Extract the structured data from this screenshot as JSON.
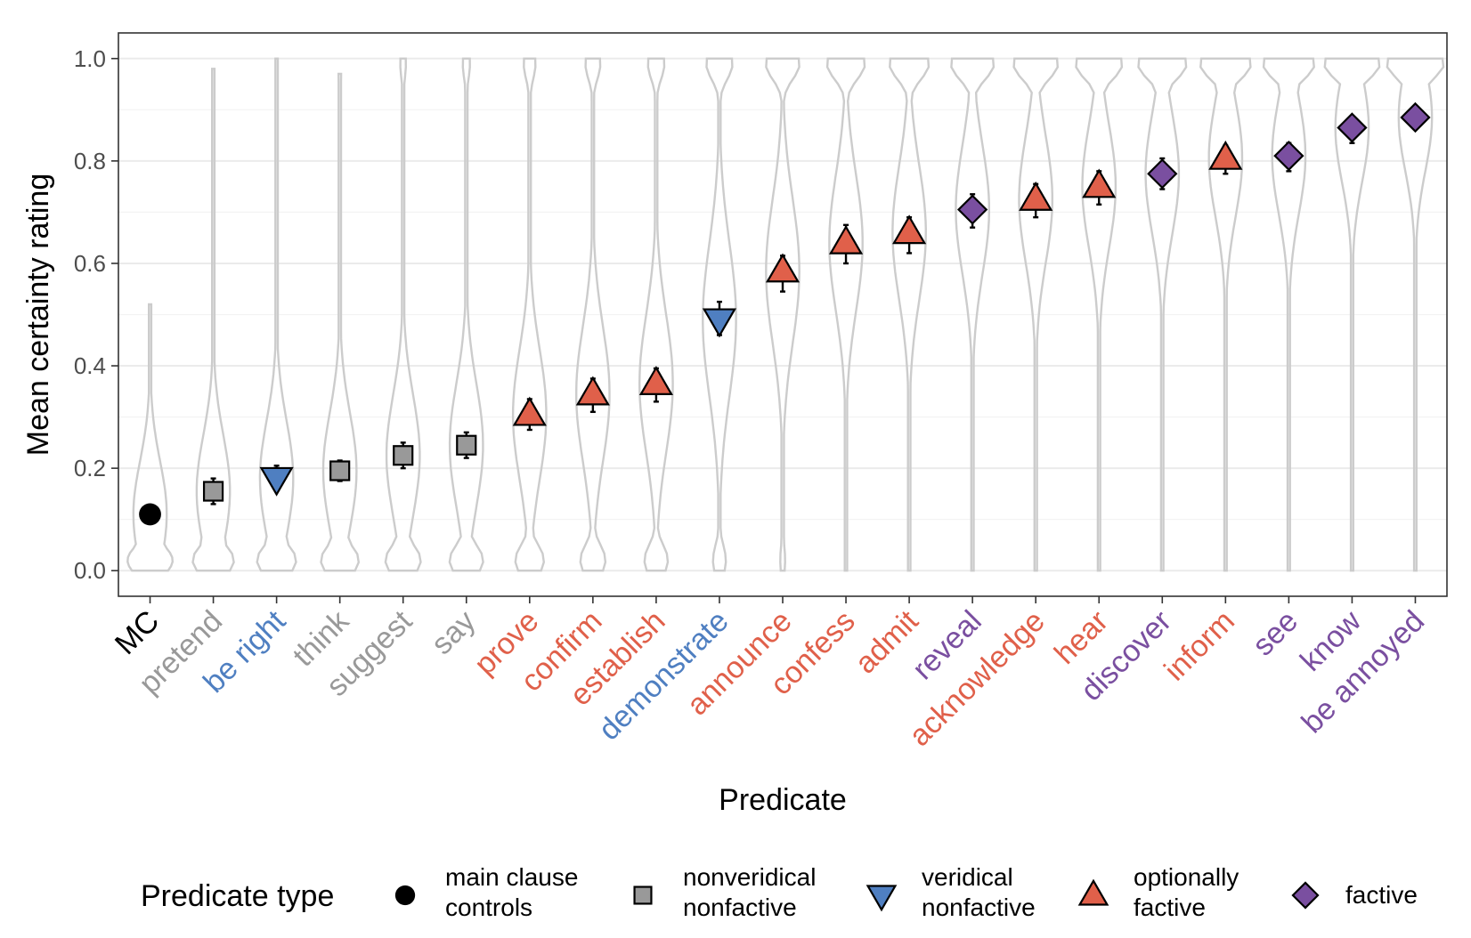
{
  "chart_data": {
    "type": "scatter",
    "xlabel": "Predicate",
    "ylabel": "Mean certainty rating",
    "ylim": [
      -0.05,
      1.05
    ],
    "yticks": [
      0.0,
      0.2,
      0.4,
      0.6,
      0.8,
      1.0
    ],
    "ytick_labels": [
      "0.0",
      "0.2",
      "0.4",
      "0.6",
      "0.8",
      "1.0"
    ],
    "grid": true,
    "legend_position": "bottom",
    "legend_title": "Predicate type",
    "types": [
      {
        "key": "mc",
        "label": [
          "main clause",
          "controls"
        ],
        "color": "#000000",
        "label_color": "#000000",
        "marker": "circle"
      },
      {
        "key": "nvnf",
        "label": [
          "nonveridical",
          "nonfactive"
        ],
        "color": "#999999",
        "label_color": "#999999",
        "marker": "square"
      },
      {
        "key": "vnf",
        "label": [
          "veridical",
          "nonfactive"
        ],
        "color": "#4F7FC1",
        "label_color": "#4F7FC1",
        "marker": "triangle-down"
      },
      {
        "key": "of",
        "label": [
          "optionally",
          "factive"
        ],
        "color": "#E0604A",
        "label_color": "#E0604A",
        "marker": "triangle-up"
      },
      {
        "key": "f",
        "label": [
          "factive"
        ],
        "color": "#7A4FA0",
        "label_color": "#7A4FA0",
        "marker": "diamond"
      }
    ],
    "points": [
      {
        "predicate": "MC",
        "type": "mc",
        "mean": 0.11,
        "ci_low": 0.11,
        "ci_high": 0.11,
        "violin_max": 0.52
      },
      {
        "predicate": "pretend",
        "type": "nvnf",
        "mean": 0.155,
        "ci_low": 0.13,
        "ci_high": 0.18,
        "violin_max": 0.98
      },
      {
        "predicate": "be right",
        "type": "vnf",
        "mean": 0.18,
        "ci_low": 0.16,
        "ci_high": 0.205,
        "violin_max": 1.0
      },
      {
        "predicate": "think",
        "type": "nvnf",
        "mean": 0.195,
        "ci_low": 0.175,
        "ci_high": 0.215,
        "violin_max": 0.97
      },
      {
        "predicate": "suggest",
        "type": "nvnf",
        "mean": 0.225,
        "ci_low": 0.2,
        "ci_high": 0.25,
        "violin_max": 1.0
      },
      {
        "predicate": "say",
        "type": "nvnf",
        "mean": 0.245,
        "ci_low": 0.22,
        "ci_high": 0.27,
        "violin_max": 1.0
      },
      {
        "predicate": "prove",
        "type": "of",
        "mean": 0.305,
        "ci_low": 0.275,
        "ci_high": 0.335,
        "violin_max": 1.0
      },
      {
        "predicate": "confirm",
        "type": "of",
        "mean": 0.345,
        "ci_low": 0.31,
        "ci_high": 0.375,
        "violin_max": 1.0
      },
      {
        "predicate": "establish",
        "type": "of",
        "mean": 0.365,
        "ci_low": 0.33,
        "ci_high": 0.395,
        "violin_max": 1.0
      },
      {
        "predicate": "demonstrate",
        "type": "vnf",
        "mean": 0.49,
        "ci_low": 0.46,
        "ci_high": 0.525,
        "violin_max": 1.0
      },
      {
        "predicate": "announce",
        "type": "of",
        "mean": 0.585,
        "ci_low": 0.545,
        "ci_high": 0.615,
        "violin_max": 1.0
      },
      {
        "predicate": "confess",
        "type": "of",
        "mean": 0.64,
        "ci_low": 0.6,
        "ci_high": 0.675,
        "violin_max": 1.0
      },
      {
        "predicate": "admit",
        "type": "of",
        "mean": 0.66,
        "ci_low": 0.62,
        "ci_high": 0.69,
        "violin_max": 1.0
      },
      {
        "predicate": "reveal",
        "type": "f",
        "mean": 0.705,
        "ci_low": 0.67,
        "ci_high": 0.735,
        "violin_max": 1.0
      },
      {
        "predicate": "acknowledge",
        "type": "of",
        "mean": 0.725,
        "ci_low": 0.69,
        "ci_high": 0.755,
        "violin_max": 1.0
      },
      {
        "predicate": "hear",
        "type": "of",
        "mean": 0.75,
        "ci_low": 0.715,
        "ci_high": 0.78,
        "violin_max": 1.0
      },
      {
        "predicate": "discover",
        "type": "f",
        "mean": 0.775,
        "ci_low": 0.745,
        "ci_high": 0.805,
        "violin_max": 1.0
      },
      {
        "predicate": "inform",
        "type": "of",
        "mean": 0.805,
        "ci_low": 0.775,
        "ci_high": 0.83,
        "violin_max": 1.0
      },
      {
        "predicate": "see",
        "type": "f",
        "mean": 0.81,
        "ci_low": 0.78,
        "ci_high": 0.835,
        "violin_max": 1.0
      },
      {
        "predicate": "know",
        "type": "f",
        "mean": 0.865,
        "ci_low": 0.835,
        "ci_high": 0.885,
        "violin_max": 1.0
      },
      {
        "predicate": "be annoyed",
        "type": "f",
        "mean": 0.885,
        "ci_low": 0.865,
        "ci_high": 0.9,
        "violin_max": 1.0
      }
    ]
  }
}
